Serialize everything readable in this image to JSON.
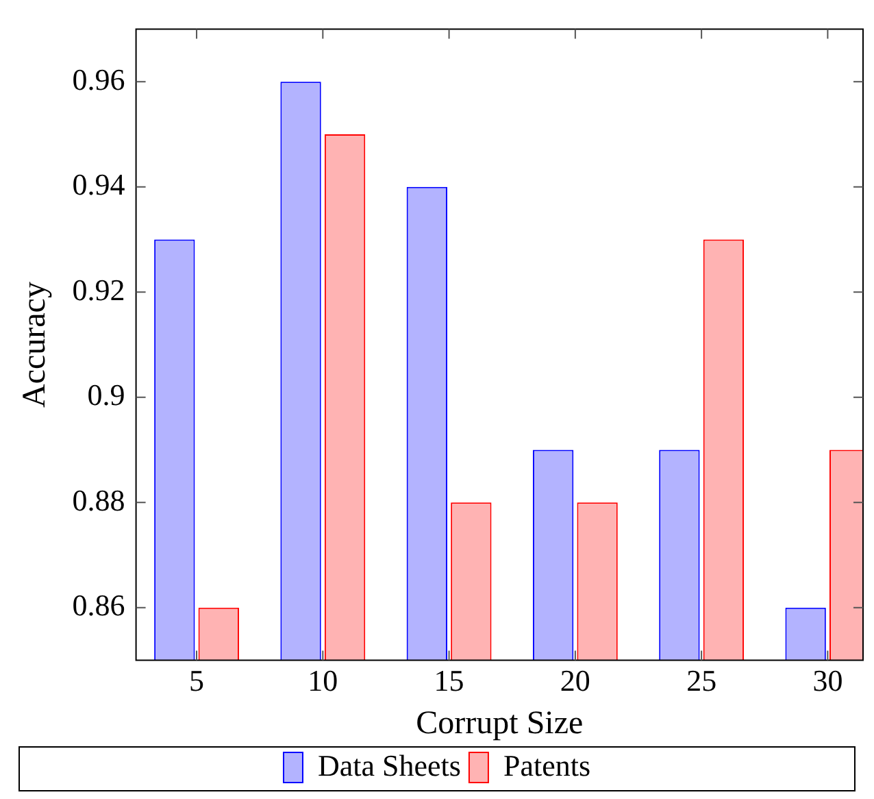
{
  "chart_data": {
    "type": "bar",
    "xlabel": "Corrupt Size",
    "ylabel": "Accuracy",
    "x": [
      5,
      10,
      15,
      20,
      25,
      30
    ],
    "series": [
      {
        "name": "Data Sheets",
        "color": "#b3b3ff",
        "values": [
          0.93,
          0.96,
          0.94,
          0.89,
          0.89,
          0.86
        ]
      },
      {
        "name": "Patents",
        "color": "#ffb3b3",
        "values": [
          0.86,
          0.95,
          0.88,
          0.88,
          0.93,
          0.89
        ]
      }
    ],
    "xlim": [
      2.6,
      31.4
    ],
    "xticks": [
      5,
      10,
      15,
      20,
      25,
      30
    ],
    "ylim": [
      0.85,
      0.97
    ],
    "yticks": [
      0.86,
      0.88,
      0.9,
      0.92,
      0.94,
      0.96
    ],
    "grid": false,
    "legend": "bottom"
  }
}
